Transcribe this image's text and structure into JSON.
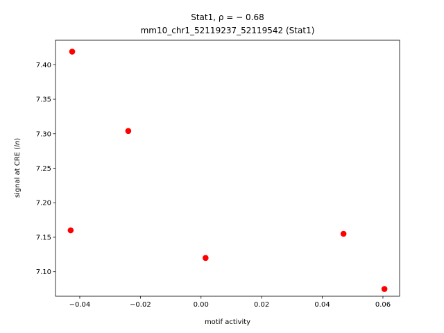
{
  "chart_data": {
    "type": "scatter",
    "title_line1": "Stat1, ρ = − 0.68",
    "title_line2": "mm10_chr1_52119237_52119542 (Stat1)",
    "xlabel": "motif activity",
    "ylabel_prefix": "signal at CRE (",
    "ylabel_italic": "ln",
    "ylabel_suffix": ")",
    "xlim": [
      -0.048,
      0.0655
    ],
    "ylim": [
      7.0645,
      7.4355
    ],
    "xticks": [
      -0.04,
      -0.02,
      0.0,
      0.02,
      0.04,
      0.06
    ],
    "xtick_labels": [
      "−0.04",
      "−0.02",
      "0.00",
      "0.02",
      "0.04",
      "0.06"
    ],
    "yticks": [
      7.1,
      7.15,
      7.2,
      7.25,
      7.3,
      7.35,
      7.4
    ],
    "ytick_labels": [
      "7.10",
      "7.15",
      "7.20",
      "7.25",
      "7.30",
      "7.35",
      "7.40"
    ],
    "point_color": "#ff0000",
    "points": [
      {
        "x": -0.0425,
        "y": 7.419
      },
      {
        "x": -0.024,
        "y": 7.304
      },
      {
        "x": -0.043,
        "y": 7.16
      },
      {
        "x": 0.0015,
        "y": 7.12
      },
      {
        "x": 0.047,
        "y": 7.155
      },
      {
        "x": 0.0605,
        "y": 7.075
      }
    ]
  }
}
